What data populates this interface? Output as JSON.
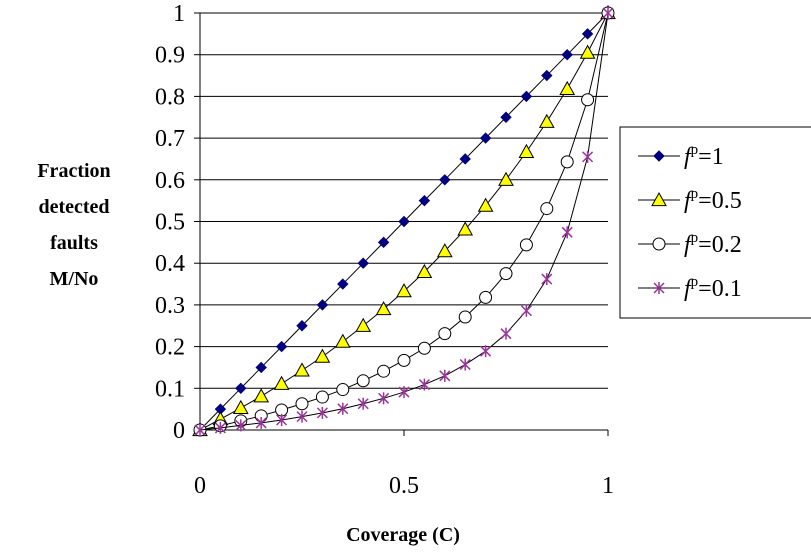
{
  "chart_data": {
    "type": "line",
    "xlabel": "Coverage (C)",
    "ylabel": [
      "Fraction",
      "detected",
      "faults",
      "M/No"
    ],
    "xlim": [
      0,
      1
    ],
    "ylim": [
      0,
      1
    ],
    "x_ticks": [
      "0",
      "0.5",
      "1"
    ],
    "y_ticks": [
      "0",
      "0.1",
      "0.2",
      "0.3",
      "0.4",
      "0.5",
      "0.6",
      "0.7",
      "0.8",
      "0.9",
      "1"
    ],
    "grid": "horizontal",
    "legend_position": "right",
    "x": [
      0,
      0.05,
      0.1,
      0.15,
      0.2,
      0.25,
      0.3,
      0.35,
      0.4,
      0.45,
      0.5,
      0.55,
      0.6,
      0.65,
      0.7,
      0.75,
      0.8,
      0.85,
      0.9,
      0.95,
      1
    ],
    "series": [
      {
        "legend_prefix": "f",
        "legend_sup": "p",
        "legend_suffix": "=1",
        "marker": "diamond",
        "color": "#000080",
        "values": [
          0,
          0.05,
          0.1,
          0.15,
          0.2,
          0.25,
          0.3,
          0.35,
          0.4,
          0.45,
          0.5,
          0.55,
          0.6,
          0.65,
          0.7,
          0.75,
          0.8,
          0.85,
          0.9,
          0.95,
          1
        ]
      },
      {
        "legend_prefix": "f",
        "legend_sup": "p",
        "legend_suffix": "=0.5",
        "marker": "triangle",
        "color": "#ffff00",
        "values": [
          0,
          0.026,
          0.053,
          0.081,
          0.111,
          0.143,
          0.176,
          0.212,
          0.25,
          0.29,
          0.333,
          0.379,
          0.429,
          0.481,
          0.538,
          0.6,
          0.667,
          0.739,
          0.818,
          0.905,
          1
        ]
      },
      {
        "legend_prefix": "f",
        "legend_sup": "p",
        "legend_suffix": "=0.2",
        "marker": "circle",
        "color": "#ffffff",
        "values": [
          0,
          0.01,
          0.022,
          0.034,
          0.048,
          0.063,
          0.079,
          0.097,
          0.118,
          0.141,
          0.167,
          0.196,
          0.231,
          0.271,
          0.318,
          0.375,
          0.444,
          0.531,
          0.643,
          0.792,
          1
        ]
      },
      {
        "legend_prefix": "f",
        "legend_sup": "p",
        "legend_suffix": "=0.1",
        "marker": "star",
        "color": "#993399",
        "values": [
          0,
          0.005,
          0.011,
          0.017,
          0.024,
          0.032,
          0.041,
          0.051,
          0.063,
          0.076,
          0.091,
          0.109,
          0.13,
          0.157,
          0.189,
          0.231,
          0.286,
          0.362,
          0.474,
          0.655,
          1
        ]
      }
    ]
  }
}
